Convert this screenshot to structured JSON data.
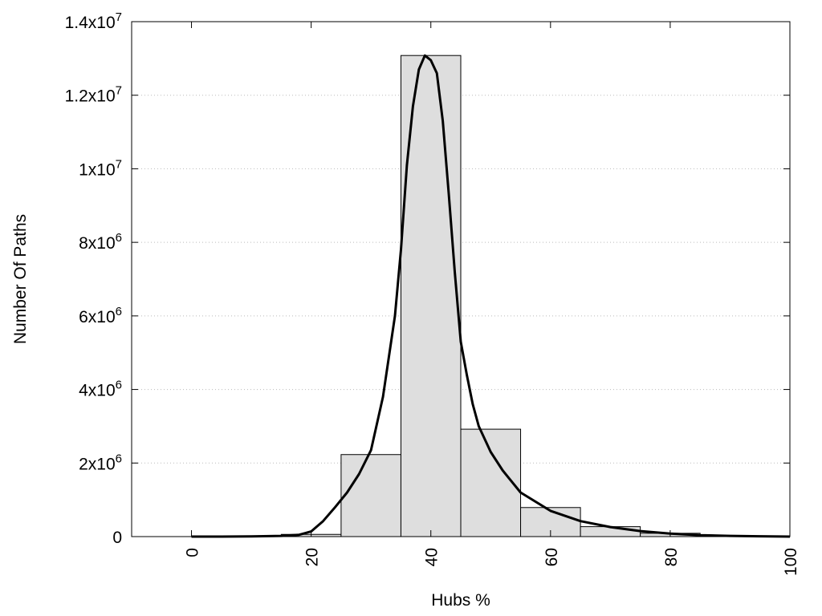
{
  "chart_data": {
    "type": "bar",
    "title": "",
    "xlabel": "Hubs %",
    "ylabel": "Number Of Paths",
    "xlim": [
      -10,
      100
    ],
    "ylim": [
      0,
      14000000
    ],
    "x_ticks": [
      0,
      20,
      40,
      60,
      80,
      100
    ],
    "y_ticks": [
      {
        "value": 0,
        "base": "0",
        "exp": ""
      },
      {
        "value": 2000000,
        "base": "2x10",
        "exp": "6"
      },
      {
        "value": 4000000,
        "base": "4x10",
        "exp": "6"
      },
      {
        "value": 6000000,
        "base": "6x10",
        "exp": "6"
      },
      {
        "value": 8000000,
        "base": "8x10",
        "exp": "6"
      },
      {
        "value": 10000000,
        "base": "1x10",
        "exp": "7"
      },
      {
        "value": 12000000,
        "base": "1.2x10",
        "exp": "7"
      },
      {
        "value": 14000000,
        "base": "1.4x10",
        "exp": "7"
      }
    ],
    "grid": "horizontal dotted",
    "bin_width": 10,
    "bars": [
      {
        "x": 0,
        "value": 0
      },
      {
        "x": 10,
        "value": 8000
      },
      {
        "x": 20,
        "value": 60000
      },
      {
        "x": 30,
        "value": 2230000
      },
      {
        "x": 40,
        "value": 13080000
      },
      {
        "x": 50,
        "value": 2920000
      },
      {
        "x": 60,
        "value": 790000
      },
      {
        "x": 70,
        "value": 270000
      },
      {
        "x": 80,
        "value": 90000
      },
      {
        "x": 90,
        "value": 15000
      }
    ],
    "fit_curve": {
      "x": [
        0,
        5,
        10,
        15,
        18,
        20,
        22,
        24,
        26,
        28,
        30,
        32,
        34,
        35,
        36,
        37,
        38,
        39,
        40,
        41,
        42,
        43,
        44,
        45,
        46,
        47,
        48,
        50,
        52,
        55,
        60,
        65,
        70,
        75,
        80,
        85,
        90,
        95,
        100
      ],
      "y": [
        0,
        0,
        5000,
        20000,
        50000,
        140000,
        420000,
        800000,
        1200000,
        1700000,
        2350000,
        3800000,
        6000000,
        7800000,
        10100000,
        11700000,
        12700000,
        13080000,
        12950000,
        12600000,
        11300000,
        9300000,
        7200000,
        5300000,
        4400000,
        3600000,
        3000000,
        2300000,
        1800000,
        1200000,
        700000,
        420000,
        260000,
        150000,
        80000,
        40000,
        20000,
        8000,
        0
      ]
    }
  }
}
